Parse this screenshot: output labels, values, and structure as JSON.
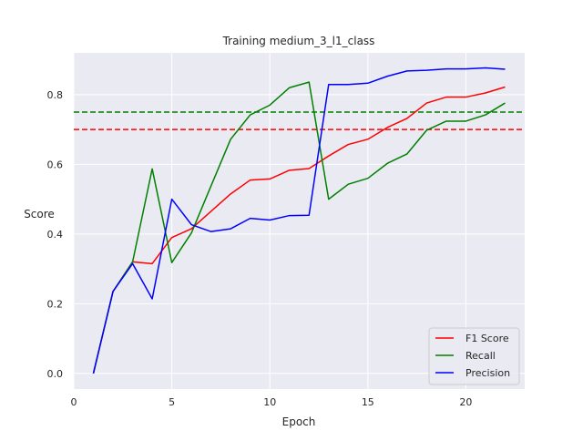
{
  "chart_data": {
    "type": "line",
    "title": "Training medium_3_l1_class",
    "xlabel": "Epoch",
    "ylabel": "Score",
    "xlim": [
      0,
      23
    ],
    "ylim": [
      -0.045,
      0.92
    ],
    "xticks": [
      0,
      5,
      10,
      15,
      20
    ],
    "yticks": [
      0.0,
      0.2,
      0.4,
      0.6,
      0.8
    ],
    "xtick_labels": [
      "0",
      "5",
      "10",
      "15",
      "20"
    ],
    "ytick_labels": [
      "0.0",
      "0.2",
      "0.4",
      "0.6",
      "0.8"
    ],
    "grid": true,
    "background": "#eaeaf2",
    "legend_position": "lower-right",
    "x": [
      1,
      2,
      3,
      4,
      5,
      6,
      7,
      8,
      9,
      10,
      11,
      12,
      13,
      14,
      15,
      16,
      17,
      18,
      19,
      20,
      21,
      22
    ],
    "series": [
      {
        "name": "F1 Score",
        "color": "#ff0000",
        "values": [
          0.0,
          0.235,
          0.32,
          0.315,
          0.39,
          0.415,
          0.465,
          0.515,
          0.555,
          0.558,
          0.583,
          0.588,
          0.624,
          0.657,
          0.672,
          0.706,
          0.732,
          0.776,
          0.793,
          0.793,
          0.805,
          0.822
        ]
      },
      {
        "name": "Recall",
        "color": "#008000",
        "values": [
          0.0,
          0.235,
          0.32,
          0.587,
          0.318,
          0.403,
          0.538,
          0.672,
          0.742,
          0.77,
          0.82,
          0.836,
          0.5,
          0.543,
          0.56,
          0.603,
          0.63,
          0.698,
          0.724,
          0.724,
          0.742,
          0.776
        ]
      },
      {
        "name": "Precision",
        "color": "#0000ff",
        "values": [
          0.0,
          0.235,
          0.315,
          0.214,
          0.5,
          0.427,
          0.407,
          0.415,
          0.445,
          0.44,
          0.453,
          0.454,
          0.829,
          0.829,
          0.833,
          0.853,
          0.868,
          0.87,
          0.874,
          0.874,
          0.877,
          0.873
        ]
      }
    ],
    "reference_lines": [
      {
        "y": 0.75,
        "color": "#008000",
        "style": "dashed"
      },
      {
        "y": 0.7,
        "color": "#ff0000",
        "style": "dashed"
      }
    ]
  }
}
